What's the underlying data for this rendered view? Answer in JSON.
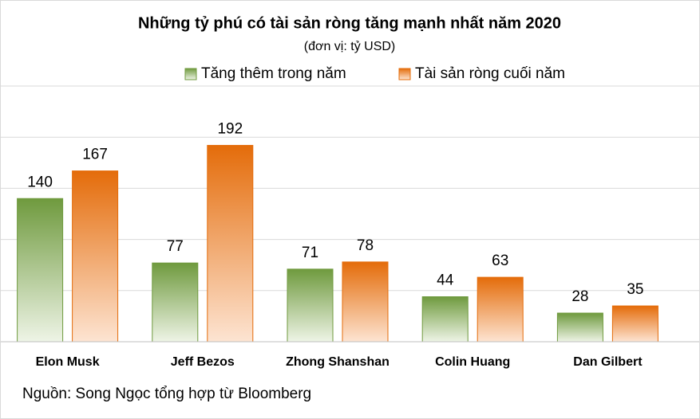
{
  "chart_data": {
    "type": "bar",
    "title": "Những tỷ phú có tài sản ròng tăng mạnh nhất năm 2020",
    "subtitle": "(đơn vị: tỷ USD)",
    "categories": [
      "Elon Musk",
      "Jeff Bezos",
      "Zhong Shanshan",
      "Colin Huang",
      "Dan Gilbert"
    ],
    "series": [
      {
        "name": "Tăng thêm trong năm",
        "color": "#6f9a3e",
        "values": [
          140,
          77,
          71,
          44,
          28
        ]
      },
      {
        "name": "Tài sản ròng cuối năm",
        "color": "#e46c0a",
        "values": [
          167,
          192,
          78,
          63,
          35
        ]
      }
    ],
    "ylim": [
      0,
      250
    ],
    "yticks": [
      0,
      50,
      100,
      150,
      200,
      250
    ],
    "grid": true,
    "source": "Nguồn: Song Ngọc tổng hợp từ Bloomberg"
  }
}
